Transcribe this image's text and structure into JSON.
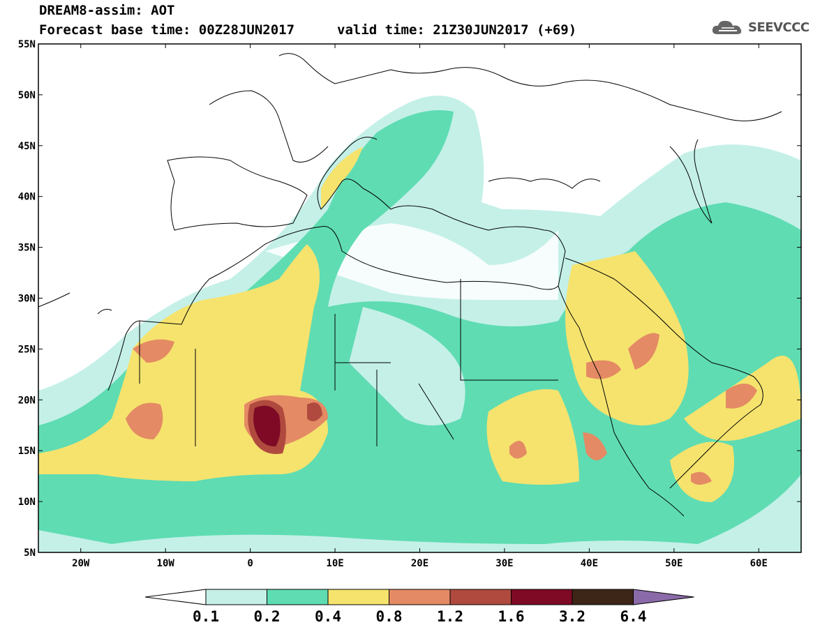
{
  "title": {
    "line1": "DREAM8-assim: AOT",
    "line2": "Forecast base time: 00Z28JUN2017",
    "valid": "valid time: 21Z30JUN2017 (+69)"
  },
  "logo": {
    "text": "SEEVCCC",
    "icon": "cloud-icon"
  },
  "map": {
    "lon_range": [
      -25,
      65
    ],
    "lat_range": [
      5,
      55
    ],
    "lat_ticks": [
      "55N",
      "50N",
      "45N",
      "40N",
      "35N",
      "30N",
      "25N",
      "20N",
      "15N",
      "10N",
      "5N"
    ],
    "lon_ticks": [
      "20W",
      "10W",
      "0",
      "10E",
      "20E",
      "30E",
      "40E",
      "50E",
      "60E"
    ]
  },
  "colorbar": {
    "labels": [
      "0.1",
      "0.2",
      "0.4",
      "0.8",
      "1.2",
      "1.6",
      "3.2",
      "6.4"
    ],
    "colors": [
      "#c4f0e8",
      "#5fdcb2",
      "#f5e36e",
      "#e48a64",
      "#b04a3e",
      "#7e0a26",
      "#3d2618",
      "#8a6aa8"
    ],
    "under_color": "#ffffff"
  }
}
